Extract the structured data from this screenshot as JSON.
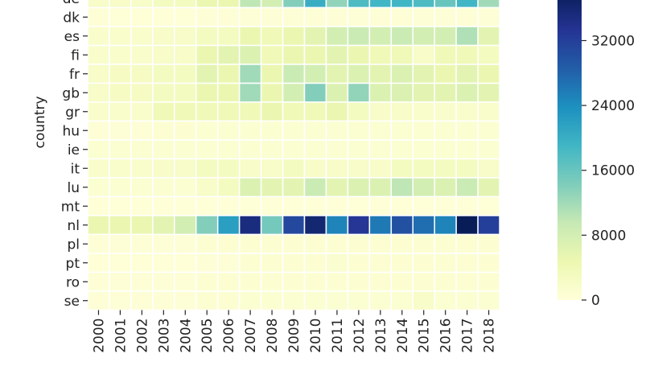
{
  "chart_data": {
    "type": "heatmap",
    "title": "",
    "xlabel": "",
    "ylabel": "country",
    "x": [
      "2000",
      "2001",
      "2002",
      "2003",
      "2004",
      "2005",
      "2006",
      "2007",
      "2008",
      "2009",
      "2010",
      "2011",
      "2012",
      "2013",
      "2014",
      "2015",
      "2016",
      "2017",
      "2018"
    ],
    "y": [
      "de",
      "dk",
      "es",
      "fi",
      "fr",
      "gb",
      "gr",
      "hu",
      "ie",
      "it",
      "lu",
      "mt",
      "nl",
      "pl",
      "pt",
      "ro",
      "se"
    ],
    "values": [
      [
        2000,
        2000,
        2000,
        3000,
        3000,
        5000,
        5000,
        10000,
        8000,
        14000,
        20000,
        13000,
        18000,
        19000,
        19000,
        18000,
        16000,
        19000,
        12000
      ],
      [
        400,
        300,
        300,
        300,
        300,
        400,
        400,
        500,
        500,
        500,
        500,
        500,
        500,
        500,
        500,
        500,
        500,
        500,
        500
      ],
      [
        1500,
        1500,
        1500,
        2000,
        2000,
        3000,
        3000,
        5000,
        4000,
        5000,
        6000,
        8000,
        9000,
        8000,
        9000,
        8000,
        8000,
        11000,
        6000
      ],
      [
        1500,
        1500,
        1500,
        2000,
        2000,
        5000,
        6000,
        7000,
        4000,
        5000,
        5000,
        6000,
        5000,
        4000,
        4000,
        2000,
        4000,
        4000,
        3000
      ],
      [
        2000,
        2500,
        2500,
        3000,
        3000,
        6000,
        5000,
        12000,
        5000,
        9000,
        8000,
        6000,
        7000,
        6000,
        7000,
        6000,
        5000,
        6000,
        5000
      ],
      [
        2000,
        2500,
        2500,
        3000,
        3000,
        5000,
        5000,
        12000,
        5000,
        8000,
        14000,
        7000,
        13000,
        7000,
        7000,
        6000,
        6000,
        7000,
        6000
      ],
      [
        1500,
        1500,
        1500,
        4000,
        4000,
        4000,
        4000,
        4000,
        5000,
        4000,
        4000,
        5000,
        3000,
        2000,
        2000,
        1500,
        1500,
        1500,
        1500
      ],
      [
        500,
        500,
        500,
        800,
        800,
        1000,
        1000,
        1000,
        1000,
        1000,
        1000,
        1000,
        1000,
        1000,
        1000,
        1000,
        1000,
        1000,
        1000
      ],
      [
        1000,
        1000,
        1000,
        1000,
        1000,
        1000,
        1000,
        1000,
        1000,
        1000,
        1000,
        1000,
        1000,
        1000,
        1000,
        1000,
        1000,
        1000,
        1000
      ],
      [
        1500,
        1500,
        1500,
        2000,
        2000,
        3000,
        3000,
        2000,
        2000,
        3000,
        2000,
        2000,
        2000,
        2000,
        3000,
        3000,
        3000,
        3000,
        2000
      ],
      [
        1000,
        1000,
        1000,
        1000,
        1000,
        2000,
        3000,
        7000,
        6000,
        6000,
        9000,
        6000,
        7000,
        7000,
        10000,
        8000,
        7000,
        9000,
        6000
      ],
      [
        300,
        300,
        300,
        300,
        300,
        300,
        300,
        300,
        300,
        300,
        300,
        300,
        300,
        300,
        300,
        300,
        300,
        300,
        300
      ],
      [
        5000,
        5000,
        5000,
        6000,
        8000,
        14000,
        22000,
        35000,
        15000,
        31000,
        36000,
        25000,
        33000,
        26000,
        30000,
        27000,
        25000,
        38000,
        32000
      ],
      [
        500,
        500,
        500,
        500,
        500,
        800,
        800,
        800,
        800,
        800,
        800,
        800,
        800,
        800,
        800,
        800,
        800,
        800,
        800
      ],
      [
        300,
        300,
        300,
        300,
        300,
        500,
        500,
        800,
        800,
        800,
        800,
        1200,
        800,
        800,
        800,
        800,
        800,
        800,
        800
      ],
      [
        500,
        500,
        500,
        500,
        500,
        800,
        800,
        800,
        800,
        800,
        800,
        800,
        800,
        800,
        800,
        800,
        800,
        800,
        800
      ],
      [
        500,
        500,
        500,
        500,
        500,
        800,
        800,
        1000,
        1000,
        1000,
        1000,
        1000,
        1000,
        1000,
        1000,
        2000,
        1000,
        1000,
        1000
      ]
    ],
    "colorbar": {
      "min": 0,
      "max": 38000,
      "ticks": [
        0,
        8000,
        16000,
        24000,
        32000
      ],
      "colormap": "YlGnBu"
    }
  }
}
